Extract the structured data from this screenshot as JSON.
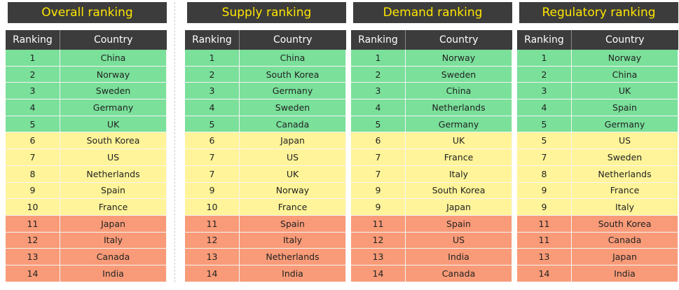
{
  "colors": {
    "top": "#7ae09a",
    "middle": "#fff499",
    "bottom": "#f99b78",
    "header": "#3c3c3c",
    "title_text": "#ffe600"
  },
  "chart_data": [
    {
      "type": "table",
      "title": "Overall ranking",
      "columns": [
        "Ranking",
        "Country"
      ],
      "rows": [
        [
          "1",
          "China",
          "top"
        ],
        [
          "2",
          "Norway",
          "top"
        ],
        [
          "3",
          "Sweden",
          "top"
        ],
        [
          "4",
          "Germany",
          "top"
        ],
        [
          "5",
          "UK",
          "top"
        ],
        [
          "6",
          "South Korea",
          "middle"
        ],
        [
          "7",
          "US",
          "middle"
        ],
        [
          "8",
          "Netherlands",
          "middle"
        ],
        [
          "9",
          "Spain",
          "middle"
        ],
        [
          "10",
          "France",
          "middle"
        ],
        [
          "11",
          "Japan",
          "bottom"
        ],
        [
          "12",
          "Italy",
          "bottom"
        ],
        [
          "13",
          "Canada",
          "bottom"
        ],
        [
          "14",
          "India",
          "bottom"
        ]
      ]
    },
    {
      "type": "table",
      "title": "Supply ranking",
      "columns": [
        "Ranking",
        "Country"
      ],
      "rows": [
        [
          "1",
          "China",
          "top"
        ],
        [
          "2",
          "South Korea",
          "top"
        ],
        [
          "3",
          "Germany",
          "top"
        ],
        [
          "4",
          "Sweden",
          "top"
        ],
        [
          "5",
          "Canada",
          "top"
        ],
        [
          "6",
          "Japan",
          "middle"
        ],
        [
          "7",
          "US",
          "middle"
        ],
        [
          "7",
          "UK",
          "middle"
        ],
        [
          "9",
          "Norway",
          "middle"
        ],
        [
          "10",
          "France",
          "middle"
        ],
        [
          "11",
          "Spain",
          "bottom"
        ],
        [
          "12",
          "Italy",
          "bottom"
        ],
        [
          "13",
          "Netherlands",
          "bottom"
        ],
        [
          "14",
          "India",
          "bottom"
        ]
      ]
    },
    {
      "type": "table",
      "title": "Demand ranking",
      "columns": [
        "Ranking",
        "Country"
      ],
      "rows": [
        [
          "1",
          "Norway",
          "top"
        ],
        [
          "2",
          "Sweden",
          "top"
        ],
        [
          "3",
          "China",
          "top"
        ],
        [
          "4",
          "Netherlands",
          "top"
        ],
        [
          "5",
          "Germany",
          "top"
        ],
        [
          "6",
          "UK",
          "middle"
        ],
        [
          "7",
          "France",
          "middle"
        ],
        [
          "7",
          "Italy",
          "middle"
        ],
        [
          "9",
          "South Korea",
          "middle"
        ],
        [
          "9",
          "Japan",
          "middle"
        ],
        [
          "11",
          "Spain",
          "bottom"
        ],
        [
          "12",
          "US",
          "bottom"
        ],
        [
          "13",
          "India",
          "bottom"
        ],
        [
          "14",
          "Canada",
          "bottom"
        ]
      ]
    },
    {
      "type": "table",
      "title": "Regulatory ranking",
      "columns": [
        "Ranking",
        "Country"
      ],
      "rows": [
        [
          "1",
          "Norway",
          "top"
        ],
        [
          "2",
          "China",
          "top"
        ],
        [
          "3",
          "UK",
          "top"
        ],
        [
          "4",
          "Spain",
          "top"
        ],
        [
          "5",
          "Germany",
          "top"
        ],
        [
          "5",
          "US",
          "middle"
        ],
        [
          "7",
          "Sweden",
          "middle"
        ],
        [
          "8",
          "Netherlands",
          "middle"
        ],
        [
          "9",
          "France",
          "middle"
        ],
        [
          "9",
          "Italy",
          "middle"
        ],
        [
          "11",
          "South Korea",
          "bottom"
        ],
        [
          "11",
          "Canada",
          "bottom"
        ],
        [
          "13",
          "Japan",
          "bottom"
        ],
        [
          "14",
          "India",
          "bottom"
        ]
      ]
    }
  ]
}
